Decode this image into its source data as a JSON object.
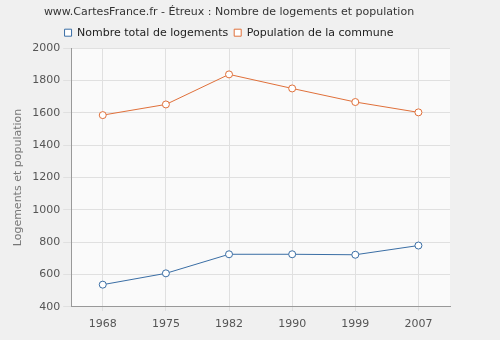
{
  "chart_data": {
    "type": "line",
    "title": "www.CartesFrance.fr - Étreux : Nombre de logements et population",
    "y_label": "Logements et population",
    "categories": [
      "1968",
      "1975",
      "1982",
      "1990",
      "1999",
      "2007"
    ],
    "series": [
      {
        "name": "Nombre total de logements",
        "color": "#3a6ea5",
        "marker": "circle",
        "values": [
          537,
          607,
          725,
          725,
          722,
          779
        ]
      },
      {
        "name": "Population de la commune",
        "color": "#e0703a",
        "marker": "circle",
        "values": [
          1586,
          1652,
          1838,
          1751,
          1667,
          1603
        ]
      }
    ],
    "ylim": [
      400,
      2000
    ],
    "yticks": [
      400,
      600,
      800,
      1000,
      1200,
      1400,
      1600,
      1800,
      2000
    ],
    "grid": true,
    "legend": "top"
  }
}
